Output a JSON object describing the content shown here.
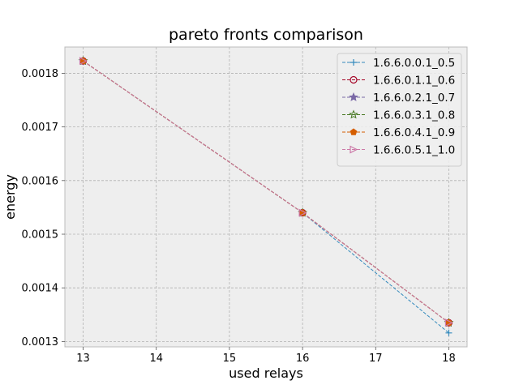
{
  "chart_data": {
    "type": "line",
    "title": "pareto fronts comparison",
    "xlabel": "used relays",
    "ylabel": "energy",
    "xlim": [
      12.75,
      18.25
    ],
    "ylim": [
      0.00129,
      0.001849
    ],
    "xticks": [
      13,
      14,
      15,
      16,
      17,
      18
    ],
    "yticks": [
      0.0013,
      0.0014,
      0.0015,
      0.0016,
      0.0017,
      0.0018
    ],
    "grid": true,
    "legend_position": "top-right",
    "series": [
      {
        "name": "1.6.6.0.0.1_0.5",
        "color": "#348abd",
        "marker": "plus",
        "points": [
          [
            13,
            0.001823
          ],
          [
            16,
            0.00154
          ],
          [
            18,
            0.001316
          ]
        ]
      },
      {
        "name": "1.6.6.0.1.1_0.6",
        "color": "#a60628",
        "marker": "circle",
        "points": [
          [
            13,
            0.001823
          ],
          [
            16,
            0.00154
          ],
          [
            18,
            0.001335
          ]
        ]
      },
      {
        "name": "1.6.6.0.2.1_0.7",
        "color": "#7a68a6",
        "marker": "star",
        "points": [
          [
            13,
            0.001823
          ],
          [
            16,
            0.00154
          ],
          [
            18,
            0.001335
          ]
        ]
      },
      {
        "name": "1.6.6.0.3.1_0.8",
        "color": "#467821",
        "marker": "star-open",
        "points": [
          [
            13,
            0.001823
          ],
          [
            16,
            0.00154
          ],
          [
            18,
            0.001335
          ]
        ]
      },
      {
        "name": "1.6.6.0.4.1_0.9",
        "color": "#d55e00",
        "marker": "pentagon",
        "points": [
          [
            13,
            0.001823
          ],
          [
            16,
            0.00154
          ],
          [
            18,
            0.001335
          ]
        ]
      },
      {
        "name": "1.6.6.0.5.1_1.0",
        "color": "#cc79a7",
        "marker": "triangle-right",
        "points": [
          [
            13,
            0.001823
          ],
          [
            16,
            0.00154
          ],
          [
            18,
            0.001335
          ]
        ]
      }
    ]
  }
}
